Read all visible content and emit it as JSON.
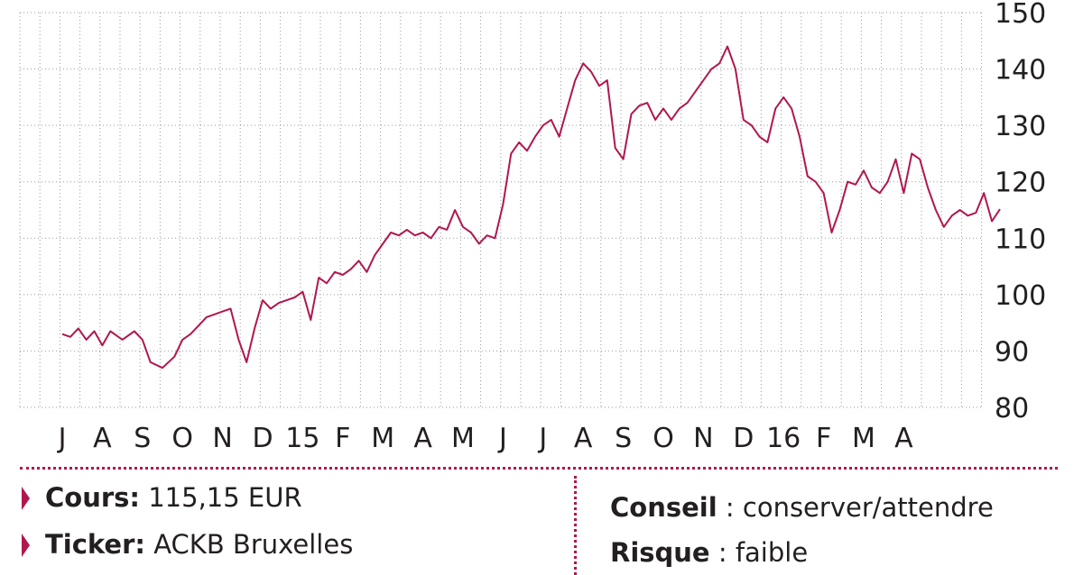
{
  "chart_data": {
    "type": "line",
    "title": "",
    "xlabel": "",
    "ylabel": "",
    "ylim": [
      80,
      150
    ],
    "yticks": [
      80,
      90,
      100,
      110,
      120,
      130,
      140,
      150
    ],
    "xtick_labels": [
      "J",
      "A",
      "S",
      "O",
      "N",
      "D",
      "15",
      "F",
      "M",
      "A",
      "M",
      "J",
      "J",
      "A",
      "S",
      "O",
      "N",
      "D",
      "16",
      "F",
      "M",
      "A"
    ],
    "grid": "dotted",
    "series": [
      {
        "color": "#b0174f",
        "x": [
          0,
          0.2,
          0.4,
          0.6,
          0.8,
          1,
          1.2,
          1.5,
          1.8,
          2,
          2.2,
          2.5,
          2.8,
          3,
          3.2,
          3.4,
          3.6,
          3.8,
          4,
          4.2,
          4.4,
          4.6,
          4.8,
          5,
          5.2,
          5.4,
          5.6,
          5.8,
          6,
          6.2,
          6.4,
          6.6,
          6.8,
          7,
          7.2,
          7.4,
          7.6,
          7.8,
          8,
          8.2,
          8.4,
          8.6,
          8.8,
          9,
          9.2,
          9.4,
          9.6,
          9.8,
          10,
          10.2,
          10.4,
          10.6,
          10.8,
          11,
          11.2,
          11.4,
          11.6,
          11.8,
          12,
          12.2,
          12.4,
          12.6,
          12.8,
          13,
          13.2,
          13.4,
          13.6,
          13.8,
          14,
          14.2,
          14.4,
          14.6,
          14.8,
          15,
          15.2,
          15.4,
          15.6,
          15.8,
          16,
          16.2,
          16.4,
          16.6,
          16.8,
          17,
          17.2,
          17.4,
          17.6,
          17.8,
          18,
          18.2,
          18.4,
          18.6,
          18.8,
          19,
          19.2,
          19.4,
          19.6,
          19.8,
          20,
          20.2,
          20.4,
          20.6,
          20.8,
          21,
          21.2,
          21.4,
          21.6,
          21.8,
          22,
          22.2,
          22.4,
          22.6,
          22.8,
          23,
          23.2,
          23.4
        ],
        "y": [
          93,
          92.5,
          94,
          92,
          93.5,
          91,
          93.5,
          92,
          93.5,
          92,
          88,
          87,
          89,
          92,
          93,
          94.5,
          96,
          96.5,
          97,
          97.5,
          92,
          88,
          94,
          99,
          97.5,
          98.5,
          99,
          99.5,
          100.5,
          95.5,
          103,
          102,
          104,
          103.5,
          104.5,
          106,
          104,
          107,
          109,
          111,
          110.5,
          111.5,
          110.5,
          111,
          110,
          112,
          111.5,
          115,
          112,
          111,
          109,
          110.5,
          110,
          116,
          125,
          127,
          125.5,
          128,
          130,
          131,
          128,
          133,
          138,
          141,
          139.5,
          137,
          138,
          126,
          124,
          132,
          133.5,
          134,
          131,
          133,
          131,
          133,
          134,
          136,
          138,
          140,
          141,
          144,
          140,
          131,
          130,
          128,
          127,
          133,
          135,
          133,
          128,
          121,
          120,
          118,
          111,
          115,
          120,
          119.5,
          122,
          119,
          118,
          120,
          124,
          118,
          125,
          124,
          119,
          115,
          112,
          114,
          115,
          114,
          114.5,
          118,
          113,
          115.15
        ]
      }
    ]
  },
  "info": {
    "cours_label": "Cours:",
    "cours_value": " 115,15 EUR",
    "ticker_label": "Ticker:",
    "ticker_value": " ACKB Bruxelles",
    "conseil_label": "Conseil",
    "conseil_value": " : conserver/attendre",
    "risque_label": "Risque",
    "risque_value": " : faible"
  }
}
